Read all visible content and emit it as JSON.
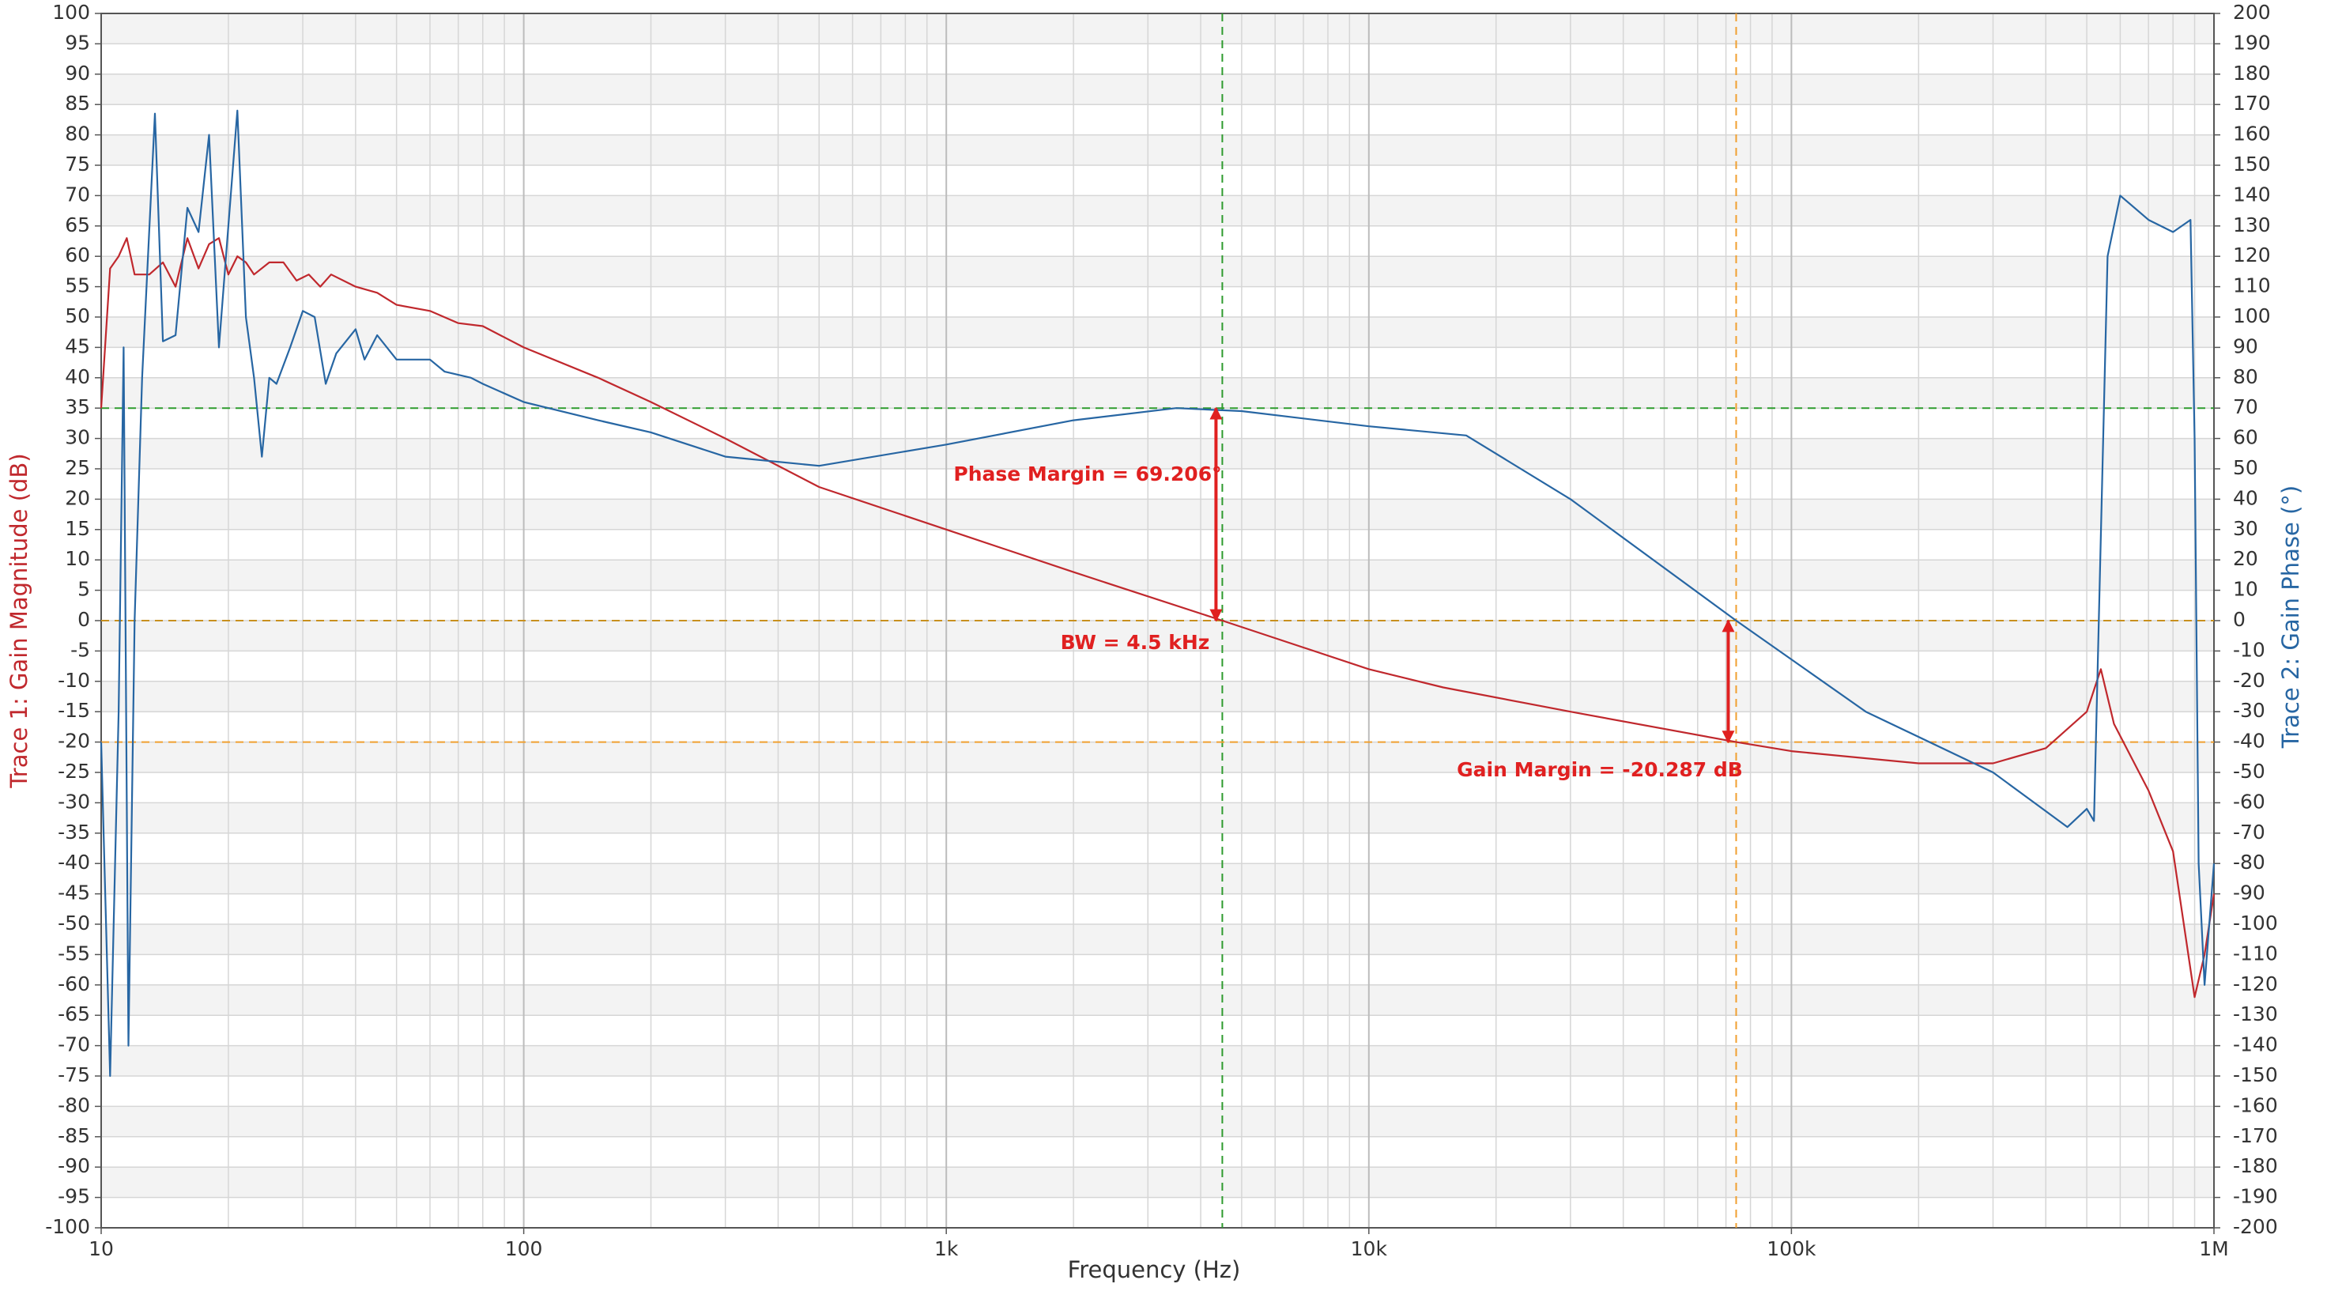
{
  "chart_data": {
    "type": "line",
    "xlabel": "Frequency (Hz)",
    "ylabel": "Trace 1: Gain Magnitude (dB)",
    "y2label": "Trace 2: Gain Phase (°)",
    "xscale": "log",
    "xlim": [
      10,
      1000000
    ],
    "xticks": [
      10,
      100,
      {
        "value": 1000,
        "label": "1k"
      },
      {
        "value": 10000,
        "label": "10k"
      },
      {
        "value": 100000,
        "label": "100k"
      },
      {
        "value": 1000000,
        "label": "1M"
      }
    ],
    "x_minor_ticks": [
      20,
      30,
      40,
      50,
      60,
      70,
      80,
      90,
      200,
      300,
      400,
      500,
      600,
      700,
      800,
      900,
      2000,
      3000,
      4000,
      5000,
      6000,
      7000,
      8000,
      9000,
      20000,
      30000,
      40000,
      50000,
      60000,
      70000,
      80000,
      90000,
      200000,
      300000,
      400000,
      500000,
      600000,
      700000,
      800000,
      900000
    ],
    "ylim": [
      -100,
      100
    ],
    "yticks": [
      -100,
      -95,
      -90,
      -85,
      -80,
      -75,
      -70,
      -65,
      -60,
      -55,
      -50,
      -45,
      -40,
      -35,
      -30,
      -25,
      -20,
      -15,
      -10,
      -5,
      0,
      5,
      10,
      15,
      20,
      25,
      30,
      35,
      40,
      45,
      50,
      55,
      60,
      65,
      70,
      75,
      80,
      85,
      90,
      95,
      100
    ],
    "y2lim": [
      -200,
      200
    ],
    "y2ticks": [
      -200,
      -190,
      -180,
      -170,
      -160,
      -150,
      -140,
      -130,
      -120,
      -110,
      -100,
      -90,
      -80,
      -70,
      -60,
      -50,
      -40,
      -30,
      -20,
      -10,
      0,
      10,
      20,
      30,
      40,
      50,
      60,
      70,
      80,
      90,
      100,
      110,
      120,
      130,
      140,
      150,
      160,
      170,
      180,
      190,
      200
    ],
    "grid": true,
    "series": [
      {
        "name": "Trace 1: Gain Magnitude (dB)",
        "color": "#c0282d",
        "x": [
          10,
          10.5,
          11,
          11.5,
          12,
          13,
          14,
          15,
          16,
          17,
          18,
          19,
          20,
          21,
          22,
          23,
          25,
          27,
          29,
          31,
          33,
          35,
          40,
          45,
          50,
          60,
          70,
          80,
          100,
          150,
          200,
          300,
          500,
          1000,
          2000,
          4500,
          10000,
          15000,
          30000,
          74000,
          100000,
          200000,
          300000,
          400000,
          500000,
          540000,
          580000,
          700000,
          800000,
          900000,
          950000,
          1000000
        ],
        "values": [
          35,
          58,
          60,
          63,
          57,
          57,
          59,
          55,
          63,
          58,
          62,
          63,
          57,
          60,
          59,
          57,
          59,
          59,
          56,
          57,
          55,
          57,
          55,
          54,
          52,
          51,
          49,
          48.5,
          45,
          40,
          36,
          30,
          22,
          15,
          8,
          0,
          -8,
          -11,
          -15,
          -20,
          -21.5,
          -23.5,
          -23.5,
          -21,
          -15,
          -8,
          -17,
          -28,
          -38,
          -62,
          -55,
          -45
        ]
      },
      {
        "name": "Trace 2: Gain Phase (°)",
        "color": "#2766a3",
        "axis": "y2",
        "x": [
          10,
          10.5,
          11,
          11.3,
          11.6,
          12,
          12.5,
          13.4,
          14,
          15,
          16,
          17,
          18,
          19,
          20,
          21,
          22,
          23,
          24,
          25,
          26,
          28,
          30,
          32,
          34,
          36,
          40,
          42,
          45,
          50,
          60,
          65,
          75,
          80,
          100,
          150,
          200,
          300,
          500,
          1000,
          2000,
          3500,
          5000,
          10000,
          17000,
          30000,
          74000,
          150000,
          300000,
          450000,
          500000,
          520000,
          560000,
          600000,
          700000,
          800000,
          880000,
          900000,
          920000,
          950000,
          1000000
        ],
        "values": [
          -40,
          -150,
          -30,
          90,
          -140,
          0,
          80,
          167,
          92,
          94,
          136,
          128,
          160,
          90,
          130,
          168,
          100,
          80,
          54,
          80,
          78,
          90,
          102,
          100,
          78,
          88,
          96,
          86,
          94,
          86,
          86,
          82,
          80,
          78,
          72,
          66,
          62,
          54,
          51,
          58,
          66,
          70,
          69,
          64,
          61,
          40,
          0,
          -30,
          -50,
          -68,
          -62,
          -66,
          120,
          140,
          132,
          128,
          132,
          60,
          -80,
          -120,
          -80
        ]
      }
    ],
    "cursors": [
      {
        "axis": "x",
        "value": 4500,
        "color": "#2e9b2e"
      },
      {
        "axis": "x",
        "value": 74000,
        "color": "#f0a030"
      },
      {
        "axis": "y",
        "value": 35,
        "color": "#2e9b2e"
      },
      {
        "axis": "y",
        "value": 0,
        "color": "#c8901e"
      },
      {
        "axis": "y",
        "value": -20,
        "color": "#f0a030"
      }
    ],
    "annotations": [
      {
        "text": "Phase Margin = 69.206°"
      },
      {
        "text": "BW = 4.5 kHz"
      },
      {
        "text": "Gain Margin = -20.287 dB"
      }
    ],
    "annotation_color": "#e02020"
  }
}
